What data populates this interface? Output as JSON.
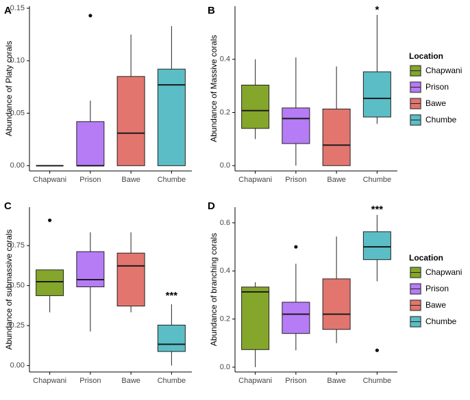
{
  "categories": [
    "Chapwani",
    "Prison",
    "Bawe",
    "Chumbe"
  ],
  "colors": {
    "Chapwani": "#84A62B",
    "Prison": "#B67CF6",
    "Bawe": "#E2766E",
    "Chumbe": "#5BBEC6",
    "axis": "#000000",
    "median": "#1a1a1a"
  },
  "legend": {
    "title": "Location",
    "items": [
      "Chapwani",
      "Prison",
      "Bawe",
      "Chumbe"
    ]
  },
  "chart_data": [
    {
      "panel": "A",
      "type": "box",
      "ylabel": "Abundance of Platy corals",
      "ylim": [
        -0.005,
        0.152
      ],
      "yticks": [
        0.0,
        0.05,
        0.1,
        0.15
      ],
      "ytick_labels": [
        "0.00",
        "0.05",
        "0.10",
        "0.15"
      ],
      "significance": "",
      "boxes": [
        {
          "category": "Chapwani",
          "low": 0.0,
          "q1": 0.0,
          "median": 0.0,
          "q3": 0.0,
          "high": 0.0,
          "outliers": []
        },
        {
          "category": "Prison",
          "low": 0.0,
          "q1": 0.0,
          "median": 0.0,
          "q3": 0.042,
          "high": 0.062,
          "outliers": [
            0.143
          ]
        },
        {
          "category": "Bawe",
          "low": 0.0,
          "q1": 0.0,
          "median": 0.031,
          "q3": 0.085,
          "high": 0.125,
          "outliers": []
        },
        {
          "category": "Chumbe",
          "low": 0.0,
          "q1": 0.0,
          "median": 0.077,
          "q3": 0.092,
          "high": 0.133,
          "outliers": []
        }
      ]
    },
    {
      "panel": "B",
      "type": "box",
      "ylabel": "Abundance of Massive corals",
      "ylim": [
        -0.02,
        0.6
      ],
      "yticks": [
        0.0,
        0.2,
        0.4
      ],
      "ytick_labels": [
        "0.0",
        "0.2",
        "0.4"
      ],
      "significance": "*",
      "boxes": [
        {
          "category": "Chapwani",
          "low": 0.1,
          "q1": 0.14,
          "median": 0.207,
          "q3": 0.303,
          "high": 0.4,
          "outliers": []
        },
        {
          "category": "Prison",
          "low": 0.0,
          "q1": 0.083,
          "median": 0.177,
          "q3": 0.217,
          "high": 0.407,
          "outliers": []
        },
        {
          "category": "Bawe",
          "low": 0.0,
          "q1": 0.0,
          "median": 0.077,
          "q3": 0.213,
          "high": 0.373,
          "outliers": []
        },
        {
          "category": "Chumbe",
          "low": 0.157,
          "q1": 0.183,
          "median": 0.253,
          "q3": 0.353,
          "high": 0.567,
          "outliers": []
        }
      ]
    },
    {
      "panel": "C",
      "type": "box",
      "ylabel": "Abundance of submassive corals",
      "ylim": [
        -0.04,
        0.99
      ],
      "yticks": [
        0.0,
        0.25,
        0.5,
        0.75
      ],
      "ytick_labels": [
        "0.00",
        "0.25",
        "0.50",
        "0.75"
      ],
      "significance": "***",
      "boxes": [
        {
          "category": "Chapwani",
          "low": 0.333,
          "q1": 0.437,
          "median": 0.524,
          "q3": 0.598,
          "high": 0.598,
          "outliers": [
            0.908
          ]
        },
        {
          "category": "Prison",
          "low": 0.213,
          "q1": 0.492,
          "median": 0.537,
          "q3": 0.712,
          "high": 0.833,
          "outliers": []
        },
        {
          "category": "Bawe",
          "low": 0.333,
          "q1": 0.372,
          "median": 0.623,
          "q3": 0.703,
          "high": 0.833,
          "outliers": []
        },
        {
          "category": "Chumbe",
          "low": 0.0,
          "q1": 0.088,
          "median": 0.133,
          "q3": 0.253,
          "high": 0.383,
          "outliers": []
        }
      ]
    },
    {
      "panel": "D",
      "type": "box",
      "ylabel": "Abundance of branching corals",
      "ylim": [
        -0.02,
        0.665
      ],
      "yticks": [
        0.0,
        0.2,
        0.4,
        0.6
      ],
      "ytick_labels": [
        "0.0",
        "0.2",
        "0.4",
        "0.6"
      ],
      "significance": "***",
      "boxes": [
        {
          "category": "Chapwani",
          "low": 0.0,
          "q1": 0.073,
          "median": 0.313,
          "q3": 0.333,
          "high": 0.353,
          "outliers": []
        },
        {
          "category": "Prison",
          "low": 0.07,
          "q1": 0.14,
          "median": 0.22,
          "q3": 0.27,
          "high": 0.43,
          "outliers": [
            0.5
          ]
        },
        {
          "category": "Bawe",
          "low": 0.1,
          "q1": 0.157,
          "median": 0.22,
          "q3": 0.367,
          "high": 0.543,
          "outliers": []
        },
        {
          "category": "Chumbe",
          "low": 0.357,
          "q1": 0.447,
          "median": 0.5,
          "q3": 0.563,
          "high": 0.633,
          "outliers": [
            0.07
          ]
        }
      ]
    }
  ]
}
